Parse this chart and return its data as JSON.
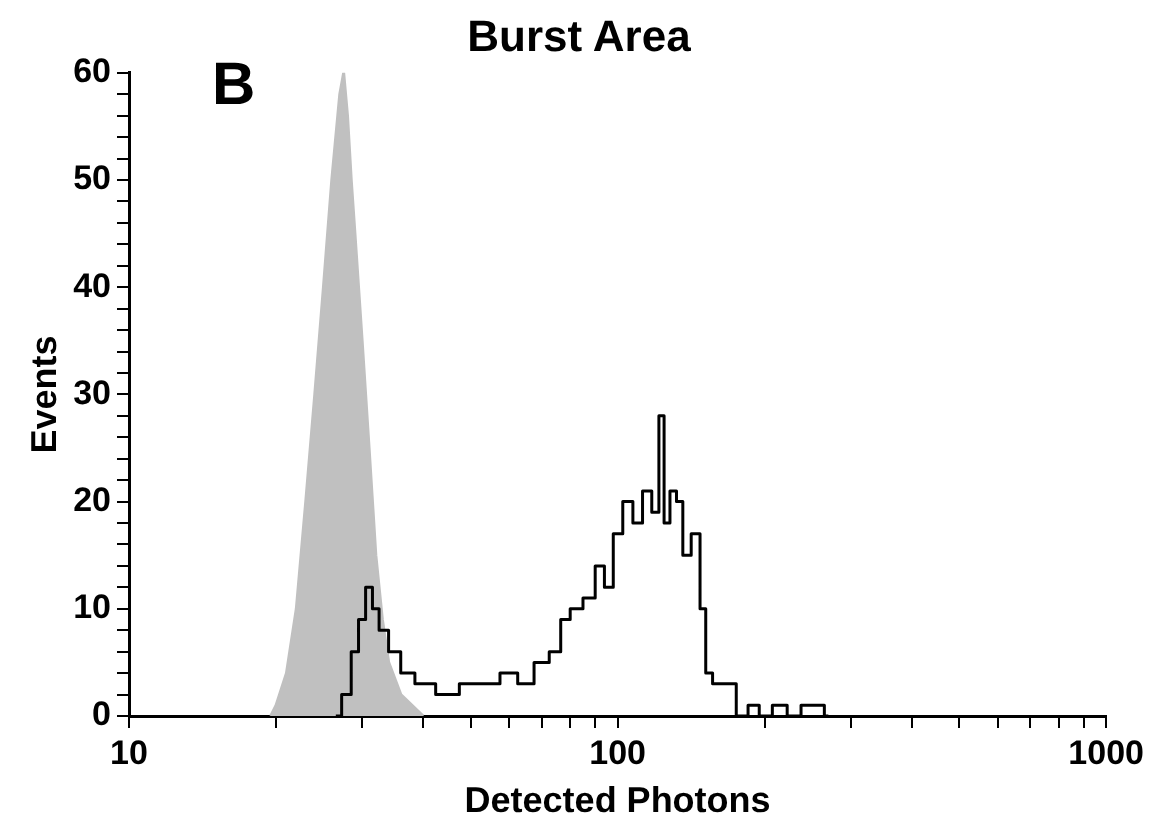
{
  "chart_data": {
    "type": "line",
    "title": "Burst Area",
    "xlabel": "Detected Photons",
    "ylabel": "Events",
    "annotations": [
      "B"
    ],
    "log": "x",
    "xlim": [
      10,
      1000
    ],
    "xticks": [
      10,
      {
        "value": 20,
        "label": null
      },
      {
        "value": 30,
        "label": null
      },
      {
        "value": 40,
        "label": null
      },
      {
        "value": 50,
        "label": null
      },
      {
        "value": 60,
        "label": null
      },
      {
        "value": 70,
        "label": null
      },
      {
        "value": 80,
        "label": null
      },
      {
        "value": 90,
        "label": null
      },
      100,
      {
        "value": 200,
        "label": null
      },
      {
        "value": 300,
        "label": null
      },
      {
        "value": 400,
        "label": null
      },
      {
        "value": 500,
        "label": null
      },
      {
        "value": 600,
        "label": null
      },
      {
        "value": 700,
        "label": null
      },
      {
        "value": 800,
        "label": null
      },
      {
        "value": 900,
        "label": null
      },
      1000
    ],
    "ylim": [
      0,
      60
    ],
    "yticks": [
      0,
      {
        "value": 2,
        "label": null
      },
      {
        "value": 4,
        "label": null
      },
      {
        "value": 6,
        "label": null
      },
      {
        "value": 8,
        "label": null
      },
      10,
      {
        "value": 12,
        "label": null
      },
      {
        "value": 14,
        "label": null
      },
      {
        "value": 16,
        "label": null
      },
      {
        "value": 18,
        "label": null
      },
      20,
      {
        "value": 22,
        "label": null
      },
      {
        "value": 24,
        "label": null
      },
      {
        "value": 26,
        "label": null
      },
      {
        "value": 28,
        "label": null
      },
      30,
      {
        "value": 32,
        "label": null
      },
      {
        "value": 34,
        "label": null
      },
      {
        "value": 36,
        "label": null
      },
      {
        "value": 38,
        "label": null
      },
      40,
      {
        "value": 42,
        "label": null
      },
      {
        "value": 44,
        "label": null
      },
      {
        "value": 46,
        "label": null
      },
      {
        "value": 48,
        "label": null
      },
      50,
      {
        "value": 52,
        "label": null
      },
      {
        "value": 54,
        "label": null
      },
      {
        "value": 56,
        "label": null
      },
      {
        "value": 58,
        "label": null
      },
      60
    ],
    "grid": false,
    "legend": false,
    "marker": "none",
    "series": [
      {
        "type": "area",
        "color": "#c0c0c0",
        "x": [
          19.5,
          20,
          21,
          22,
          23,
          24,
          25,
          26,
          27,
          27.5,
          28,
          28.5,
          29,
          30,
          31,
          32,
          33,
          34,
          36,
          40
        ],
        "values": [
          0,
          1,
          4,
          10,
          20,
          30,
          40,
          50,
          58,
          60,
          56,
          50,
          45,
          35,
          25,
          15,
          9,
          5,
          2,
          0
        ]
      },
      {
        "type": "step",
        "color": "#000000",
        "x": [
          26.5,
          28,
          29,
          30,
          31,
          32,
          33,
          35,
          37,
          40,
          45,
          50,
          55,
          60,
          65,
          70,
          75,
          78,
          82,
          88,
          92,
          96,
          100,
          105,
          110,
          115,
          120,
          123,
          126,
          130,
          134,
          138,
          145,
          150,
          153,
          160,
          170,
          180,
          190,
          200,
          215,
          230,
          245,
          260,
          270
        ],
        "values": [
          0,
          2,
          6,
          9,
          12,
          10,
          8,
          6,
          4,
          3,
          2,
          3,
          3,
          4,
          3,
          5,
          6,
          9,
          10,
          11,
          14,
          12,
          17,
          20,
          18,
          21,
          19,
          28,
          18,
          21,
          20,
          15,
          17,
          10,
          4,
          3,
          3,
          0,
          1,
          0,
          1,
          0,
          1,
          1,
          0
        ]
      }
    ]
  }
}
